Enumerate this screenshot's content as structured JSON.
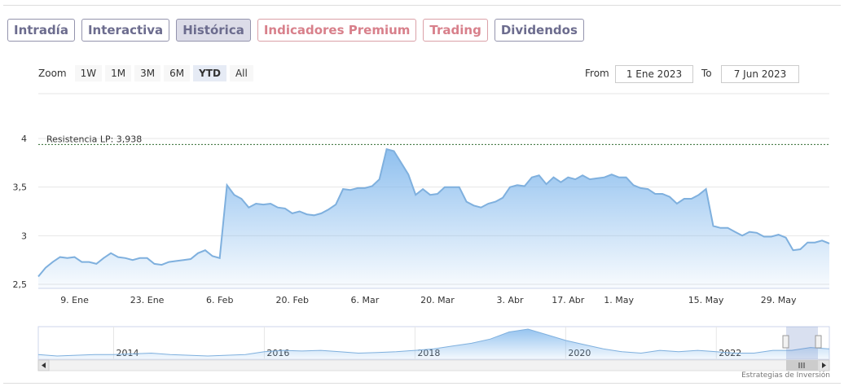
{
  "tabs": [
    "Intradía",
    "Interactiva",
    "Histórica",
    "Indicadores Premium",
    "Trading",
    "Dividendos"
  ],
  "zoom": {
    "label": "Zoom",
    "buttons": [
      "1W",
      "1M",
      "3M",
      "6M",
      "YTD",
      "All"
    ]
  },
  "range": {
    "from_label": "From",
    "from": "1 Ene 2023",
    "to_label": "To",
    "to": "7 Jun 2023"
  },
  "chart_data": {
    "type": "line",
    "color": "#7fb0de",
    "categories": [
      null,
      null,
      null,
      null,
      null,
      "9. Ene",
      null,
      null,
      null,
      null,
      null,
      null,
      null,
      null,
      null,
      "23. Ene",
      null,
      null,
      null,
      null,
      null,
      null,
      null,
      null,
      null,
      "6. Feb",
      null,
      null,
      null,
      null,
      null,
      null,
      null,
      null,
      null,
      "20. Feb",
      null,
      null,
      null,
      null,
      null,
      null,
      null,
      null,
      null,
      "6. Mar",
      null,
      null,
      null,
      null,
      null,
      null,
      null,
      null,
      null,
      "20. Mar",
      null,
      null,
      null,
      null,
      null,
      null,
      null,
      null,
      null,
      "3. Abr",
      null,
      null,
      null,
      null,
      null,
      null,
      null,
      "17. Abr",
      null,
      null,
      null,
      null,
      null,
      null,
      "1. May",
      null,
      null,
      null,
      null,
      null,
      null,
      null,
      null,
      null,
      null,
      null,
      "15. May",
      null,
      null,
      null,
      null,
      null,
      null,
      null,
      null,
      null,
      "29. May",
      null,
      null,
      null,
      null,
      null,
      null,
      null
    ],
    "values": [
      2.58,
      2.67,
      2.73,
      2.78,
      2.77,
      2.78,
      2.73,
      2.73,
      2.71,
      2.77,
      2.82,
      2.78,
      2.77,
      2.75,
      2.77,
      2.77,
      2.71,
      2.7,
      2.73,
      2.74,
      2.75,
      2.76,
      2.82,
      2.85,
      2.79,
      2.77,
      3.52,
      3.42,
      3.38,
      3.29,
      3.33,
      3.32,
      3.33,
      3.29,
      3.28,
      3.23,
      3.25,
      3.22,
      3.21,
      3.23,
      3.27,
      3.32,
      3.48,
      3.47,
      3.49,
      3.49,
      3.51,
      3.58,
      3.89,
      3.87,
      3.75,
      3.63,
      3.42,
      3.48,
      3.42,
      3.43,
      3.5,
      3.5,
      3.5,
      3.35,
      3.31,
      3.29,
      3.33,
      3.35,
      3.39,
      3.5,
      3.52,
      3.51,
      3.6,
      3.62,
      3.53,
      3.6,
      3.55,
      3.6,
      3.58,
      3.62,
      3.58,
      3.59,
      3.6,
      3.63,
      3.6,
      3.6,
      3.52,
      3.49,
      3.48,
      3.43,
      3.43,
      3.4,
      3.33,
      3.38,
      3.38,
      3.42,
      3.48,
      3.1,
      3.08,
      3.08,
      3.04,
      3.0,
      3.04,
      3.03,
      2.99,
      2.99,
      3.01,
      2.98,
      2.85,
      2.86,
      2.93,
      2.93,
      2.95,
      2.92
    ],
    "ylim": [
      2.5,
      4
    ],
    "yticks": [
      {
        "value": 2.5,
        "label": "2,5"
      },
      3,
      {
        "value": 3.5,
        "label": "3,5"
      },
      4
    ],
    "grid": true,
    "resistance": {
      "label": "Resistencia LP: 3,938",
      "value": 3.938,
      "color": "#2e6b2e"
    },
    "navigator": {
      "xlim": [
        2013,
        2023.5
      ],
      "xticks": [
        2014,
        2016,
        2018,
        2020,
        2022
      ],
      "values": [
        2.6,
        2.5,
        2.55,
        2.6,
        2.6,
        2.65,
        2.7,
        2.6,
        2.55,
        2.5,
        2.55,
        2.6,
        2.8,
        2.9,
        2.85,
        2.9,
        2.8,
        2.7,
        2.75,
        2.8,
        2.9,
        3.0,
        3.2,
        3.4,
        3.7,
        4.2,
        4.4,
        4.0,
        3.6,
        3.3,
        3.0,
        2.8,
        2.7,
        2.9,
        2.8,
        2.9,
        2.8,
        2.7,
        2.7,
        2.9,
        2.9,
        3.1,
        3.0
      ]
    }
  },
  "credits": "Estrategias de Inversión"
}
